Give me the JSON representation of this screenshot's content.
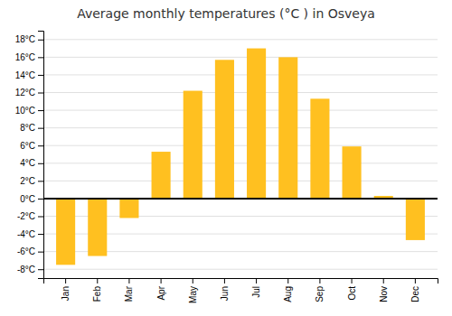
{
  "chart_data": {
    "type": "bar",
    "title": "Average monthly temperatures (°C ) in Osveya",
    "categories": [
      "Jan",
      "Feb",
      "Mar",
      "Apr",
      "May",
      "Jun",
      "Jul",
      "Aug",
      "Sep",
      "Oct",
      "Nov",
      "Dec"
    ],
    "values": [
      -7.5,
      -6.5,
      -2.2,
      5.3,
      12.2,
      15.7,
      17.0,
      16.0,
      11.3,
      5.9,
      0.3,
      -4.7
    ],
    "color": "#FFC020",
    "ylim": [
      -9,
      19
    ],
    "yticks": [
      {
        "value": -8,
        "label": "-8°C"
      },
      {
        "value": -6,
        "label": "-6°C"
      },
      {
        "value": -4,
        "label": "-4°C"
      },
      {
        "value": -2,
        "label": "-2°C"
      },
      {
        "value": 0,
        "label": "0°C"
      },
      {
        "value": 2,
        "label": "2°C"
      },
      {
        "value": 4,
        "label": "4°C"
      },
      {
        "value": 6,
        "label": "6°C"
      },
      {
        "value": 8,
        "label": "8°C"
      },
      {
        "value": 10,
        "label": "10°C"
      },
      {
        "value": 12,
        "label": "12°C"
      },
      {
        "value": 14,
        "label": "14°C"
      },
      {
        "value": 16,
        "label": "16°C"
      },
      {
        "value": 18,
        "label": "18°C"
      }
    ],
    "grid": true
  }
}
